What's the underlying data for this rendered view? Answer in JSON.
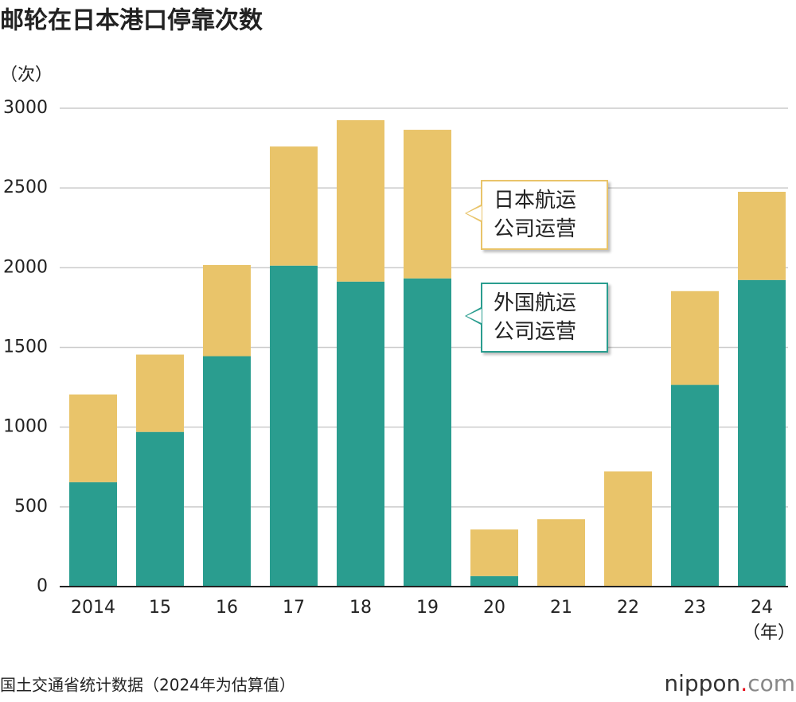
{
  "chart_data": {
    "type": "stacked_bar",
    "title": "邮轮在日本港口停靠次数",
    "y_unit": "（次）",
    "x_unit": "（年）",
    "categories": [
      "2014",
      "15",
      "16",
      "17",
      "18",
      "19",
      "20",
      "21",
      "22",
      "23",
      "24"
    ],
    "series": [
      {
        "name": "外国航运公司运营",
        "color": "#2a9d8f",
        "values": [
          655,
          970,
          1445,
          2013,
          1913,
          1933,
          66,
          0,
          0,
          1265,
          1923
        ]
      },
      {
        "name": "日本航运公司运营",
        "color": "#e9c46a",
        "values": [
          550,
          485,
          572,
          747,
          1012,
          932,
          292,
          423,
          722,
          588,
          553
        ]
      }
    ],
    "ylim": [
      0,
      3000
    ],
    "yticks": [
      0,
      500,
      1000,
      1500,
      2000,
      2500,
      3000
    ],
    "grid": true,
    "source": "国土交通省统计数据（2024年为估算值）",
    "logo": [
      "nippon",
      ".",
      "com"
    ]
  }
}
